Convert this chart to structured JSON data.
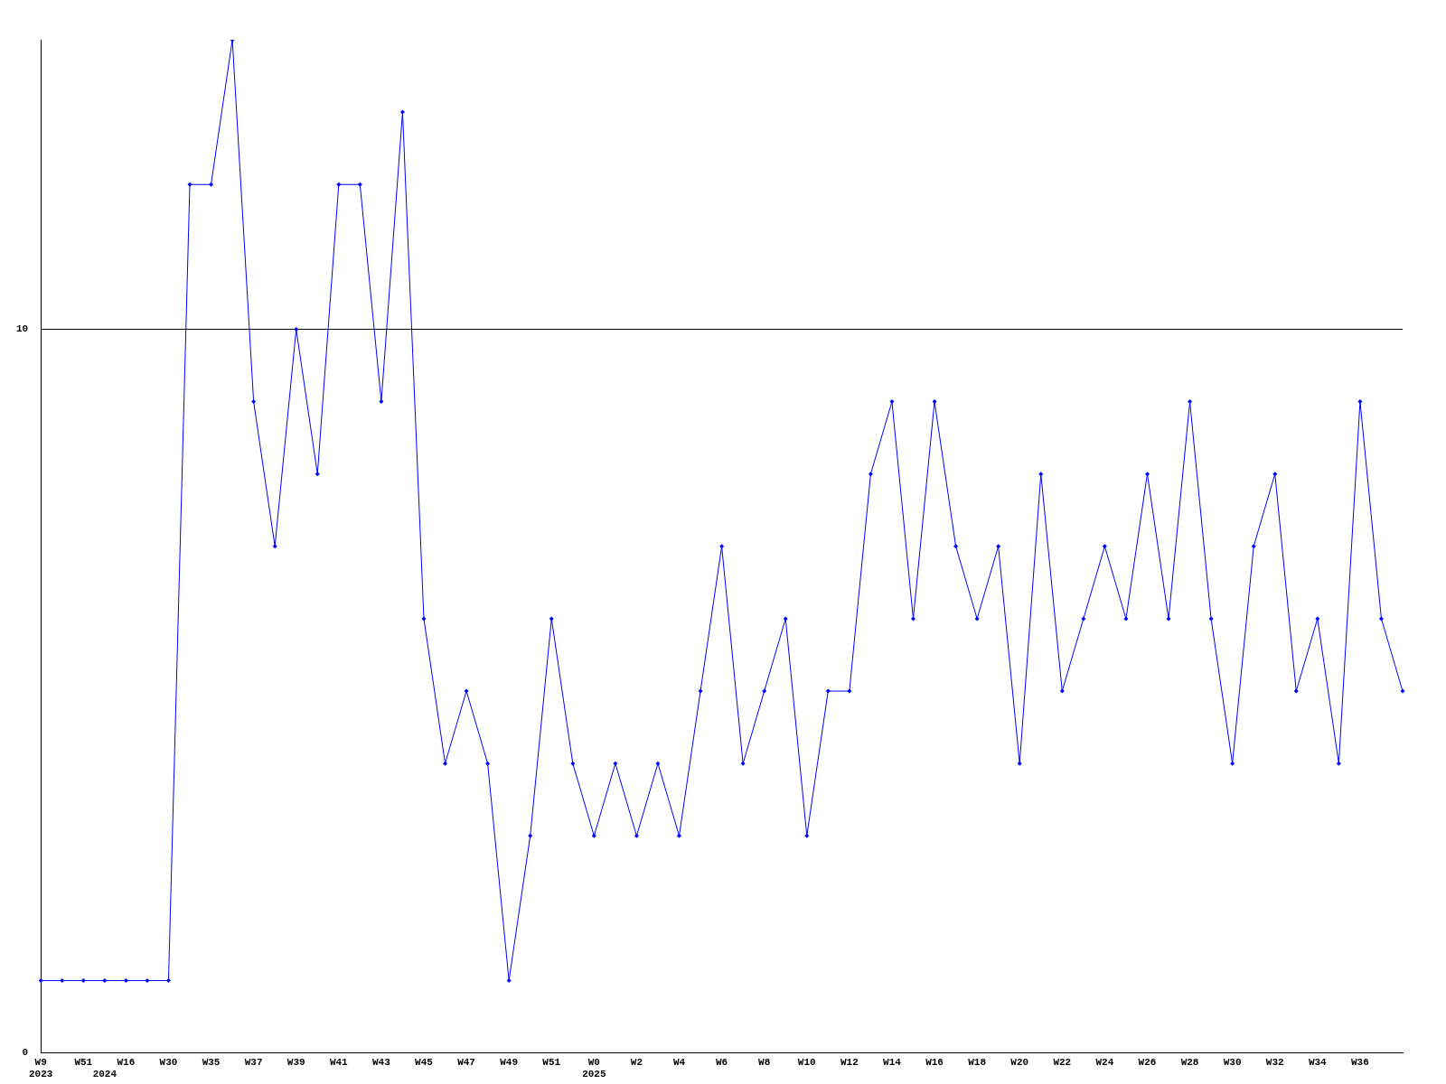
{
  "chart_data": {
    "type": "line",
    "categories": [
      "W9\n2023",
      null,
      "W51",
      "\n2024",
      "W16",
      null,
      "W30",
      null,
      "W35",
      null,
      "W37",
      null,
      "W39",
      null,
      "W41",
      null,
      "W43",
      null,
      "W45",
      null,
      "W47",
      null,
      "W49",
      null,
      "W51",
      null,
      "W0\n2025",
      null,
      "W2",
      null,
      "W4",
      null,
      "W6",
      null,
      "W8",
      null,
      "W10",
      null,
      "W12",
      null,
      "W14",
      null,
      "W16",
      null,
      "W18",
      null,
      "W20",
      null,
      "W22",
      null,
      "W24",
      null,
      "W26",
      null,
      "W28",
      null,
      "W30",
      null,
      "W32",
      null,
      "W34",
      null,
      "W36",
      null,
      null
    ],
    "series": [
      {
        "color": "#0000ff",
        "values": [
          1,
          1,
          1,
          1,
          1,
          1,
          1,
          12,
          12,
          14,
          9,
          7,
          10,
          8,
          12,
          12,
          9,
          13,
          6,
          4,
          5,
          4,
          1,
          3,
          6,
          4,
          3,
          4,
          3,
          4,
          3,
          5,
          7,
          4,
          5,
          6,
          3,
          5,
          5,
          8,
          9,
          6,
          9,
          7,
          6,
          7,
          4,
          8,
          5,
          6,
          7,
          6,
          8,
          6,
          9,
          6,
          4,
          7,
          8,
          5,
          6,
          4,
          9,
          6,
          5
        ]
      }
    ],
    "ylim": [
      0,
      14
    ],
    "yticks": [
      0,
      10
    ],
    "grid": "y",
    "legend": false,
    "marker": "diamond",
    "line_style": "solid"
  }
}
